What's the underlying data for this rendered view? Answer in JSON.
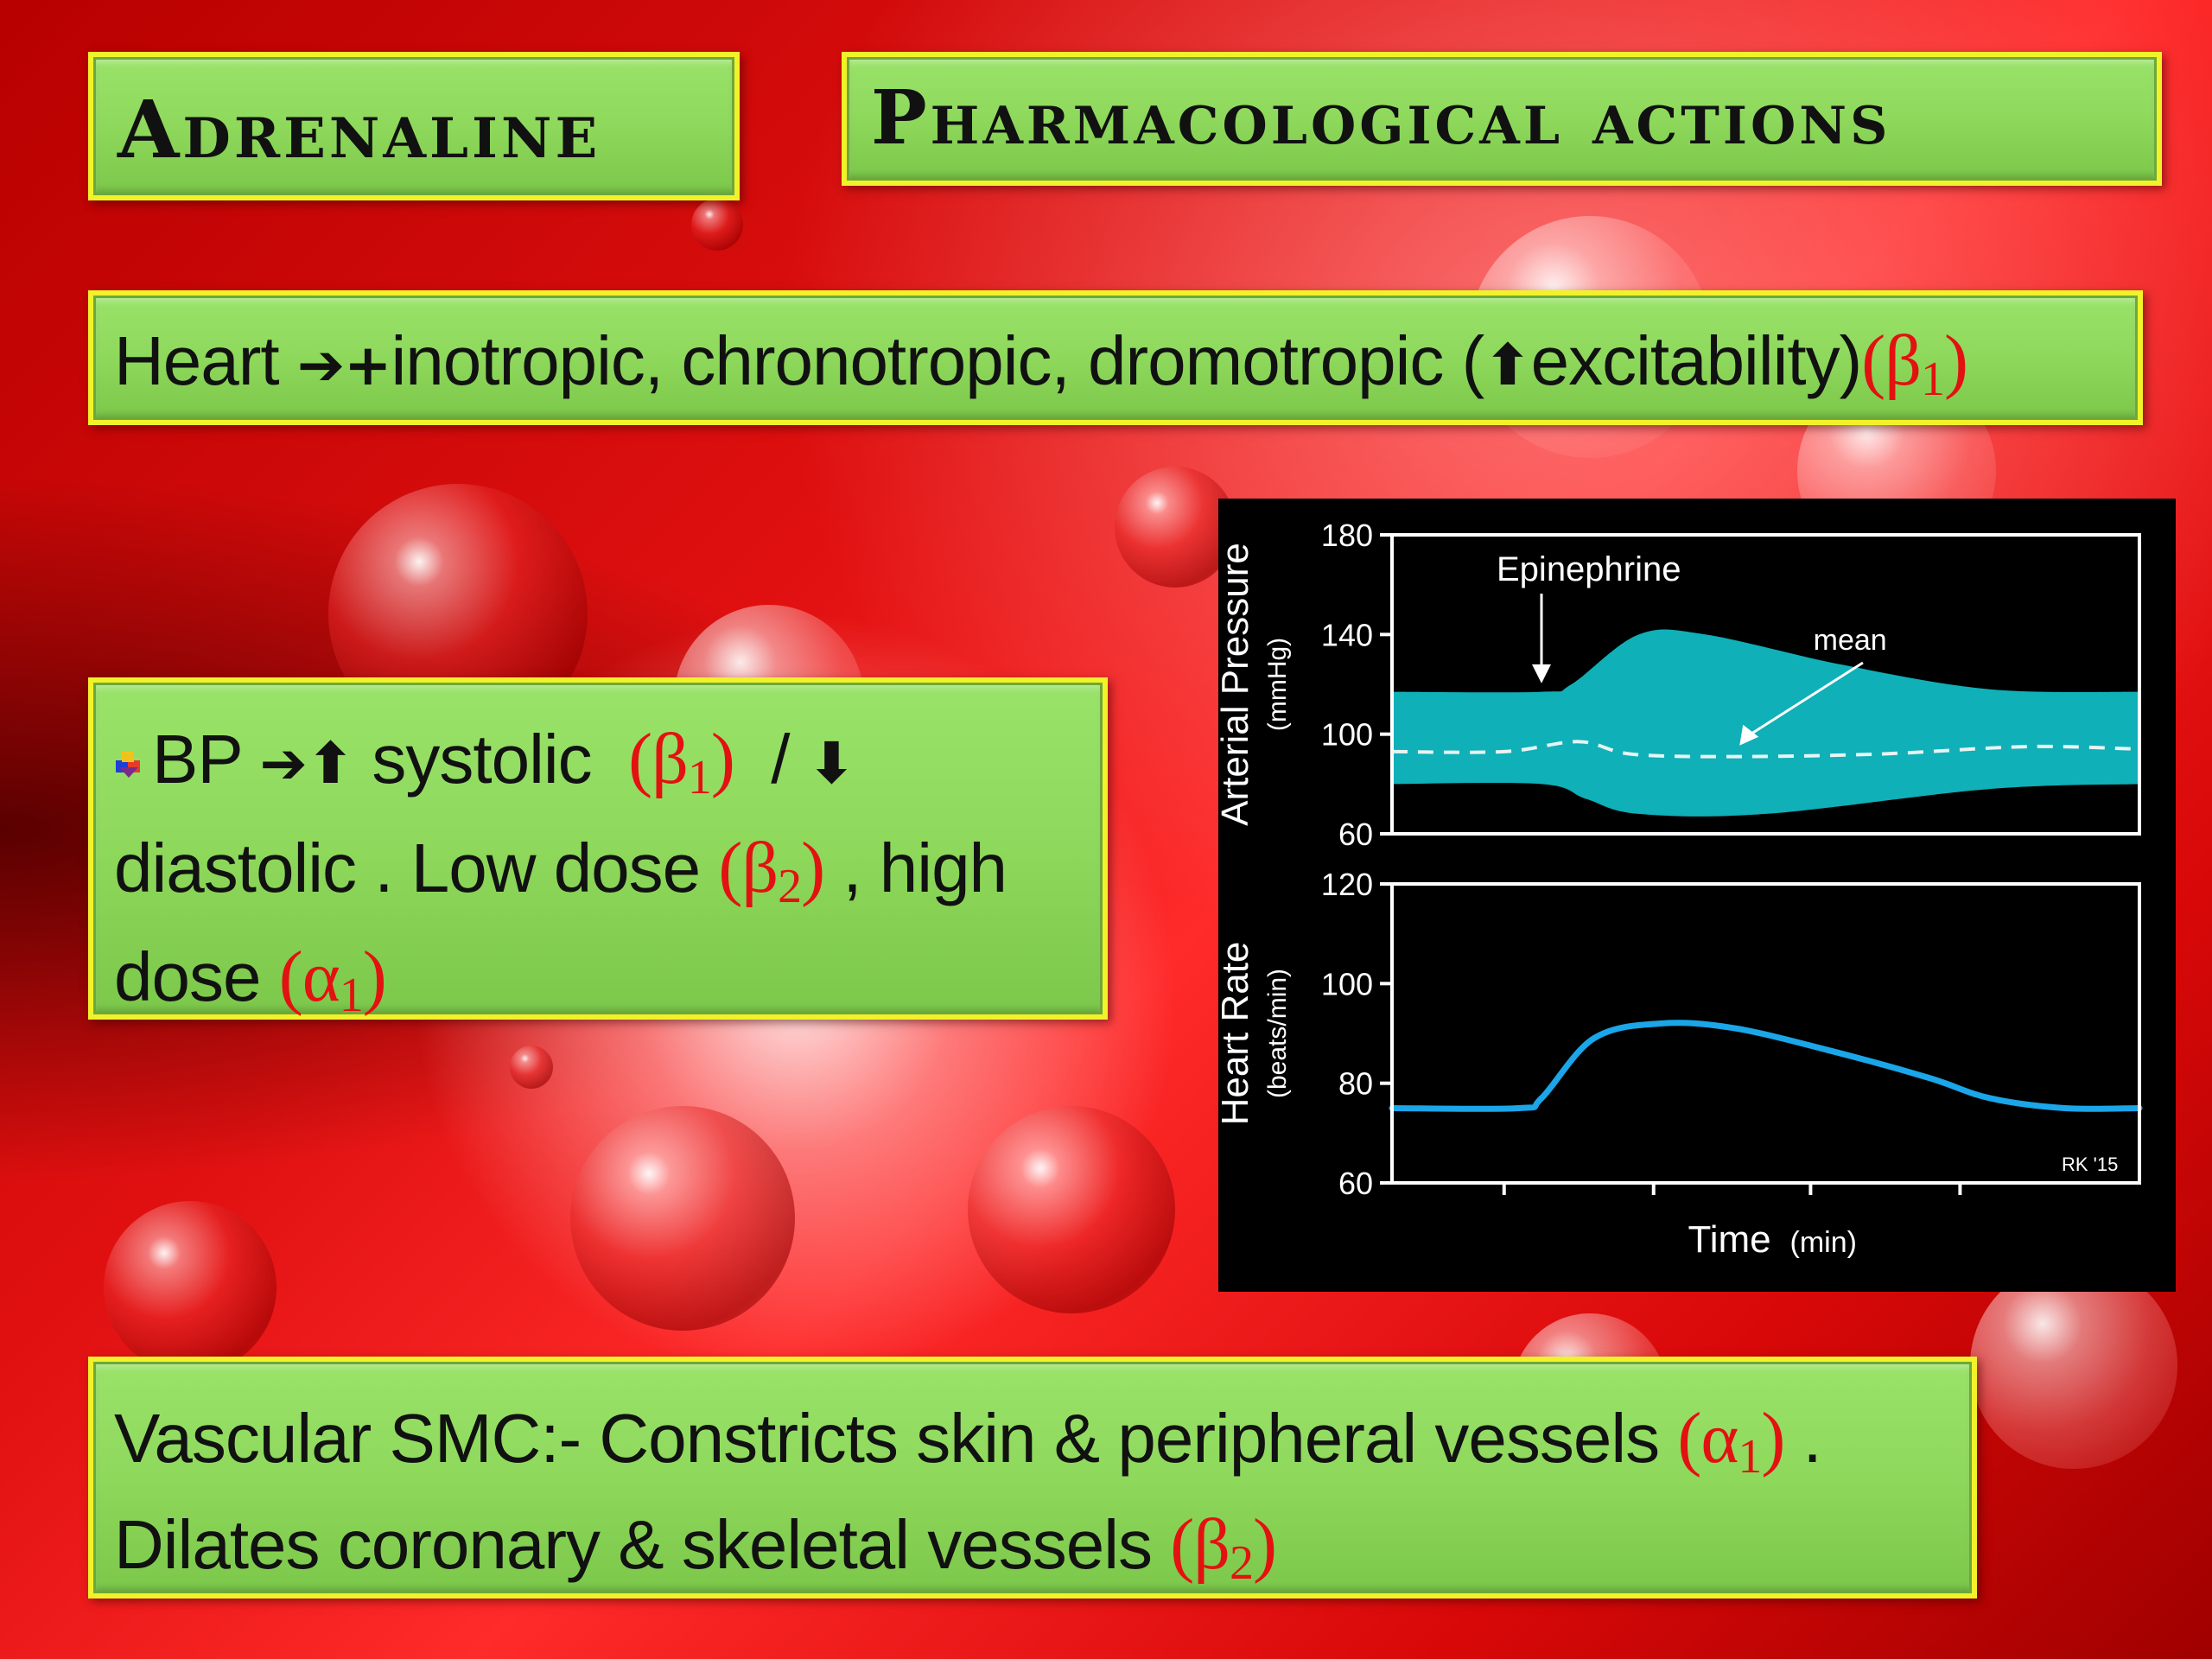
{
  "slide": {
    "title_left": "Adrenaline",
    "title_right": "Pharmacological actions",
    "heart": {
      "label": "Heart",
      "arrow": "➔",
      "plus": "+",
      "text": "inotropic, chronotropic, dromotropic (",
      "up": "⬆",
      "text2": "excitability)",
      "receptor": "(β",
      "receptor_sub": "1",
      "receptor_close": ")"
    },
    "bp": {
      "label": "BP",
      "arrow": "➔",
      "up": "⬆",
      "systolic": "systolic",
      "r1": "(β",
      "r1_sub": "1",
      "r1_close": ")",
      "slash": "/",
      "down": "⬇",
      "diastolic": "diastolic . Low dose",
      "r2": "(β",
      "r2_sub": "2",
      "r2_close": ")",
      "high": ", high",
      "dose": "dose",
      "r3": "(α",
      "r3_sub": "1",
      "r3_close": ")"
    },
    "vascular": {
      "line1": "Vascular SMC:- Constricts skin & peripheral vessels",
      "r1": "(α",
      "r1_sub": "1",
      "r1_close": ")",
      "r1_tail": " .",
      "line2": "Dilates  coronary & skeletal vessels",
      "r2": "(β",
      "r2_sub": "2",
      "r2_close": ")"
    }
  },
  "chart_data": [
    {
      "type": "area",
      "ylabel": "Arterial Pressure",
      "yunit": "(mmHg)",
      "ylim": [
        60,
        180
      ],
      "yticks": [
        "180",
        "140",
        "100",
        "60"
      ],
      "xlim": [
        0,
        10
      ],
      "annotations": {
        "drug": "Epinephrine",
        "mean": "mean"
      },
      "fill_color": "#0fb0b8",
      "systolic": {
        "x": [
          0,
          2.0,
          2.4,
          3.3,
          4.2,
          6.0,
          8.0,
          10
        ],
        "y": [
          117,
          117,
          120,
          140,
          140,
          128,
          118,
          117
        ]
      },
      "diastolic": {
        "x": [
          0,
          2.0,
          2.6,
          3.3,
          5.0,
          8.0,
          10
        ],
        "y": [
          80,
          80,
          74,
          68,
          68,
          78,
          80
        ]
      },
      "mean": {
        "x": [
          0,
          1.5,
          2.5,
          3.2,
          4.5,
          6.5,
          8.5,
          10
        ],
        "y": [
          93,
          93,
          97,
          92,
          91,
          92,
          95,
          94
        ]
      }
    },
    {
      "type": "line",
      "ylabel": "Heart Rate",
      "yunit": "(beats/min)",
      "xlabel": "Time",
      "xunit": "(min)",
      "ylim": [
        60,
        120
      ],
      "yticks": [
        "120",
        "100",
        "80",
        "60"
      ],
      "xlim": [
        0,
        10
      ],
      "line_color": "#1aa6e8",
      "watermark": "RK '15",
      "series": {
        "x": [
          0,
          1.7,
          2.0,
          2.7,
          3.6,
          4.6,
          6.0,
          7.2,
          8.0,
          9.0,
          10
        ],
        "y": [
          75,
          75,
          77,
          89,
          92,
          91,
          86,
          81,
          77,
          75,
          75
        ]
      }
    }
  ]
}
